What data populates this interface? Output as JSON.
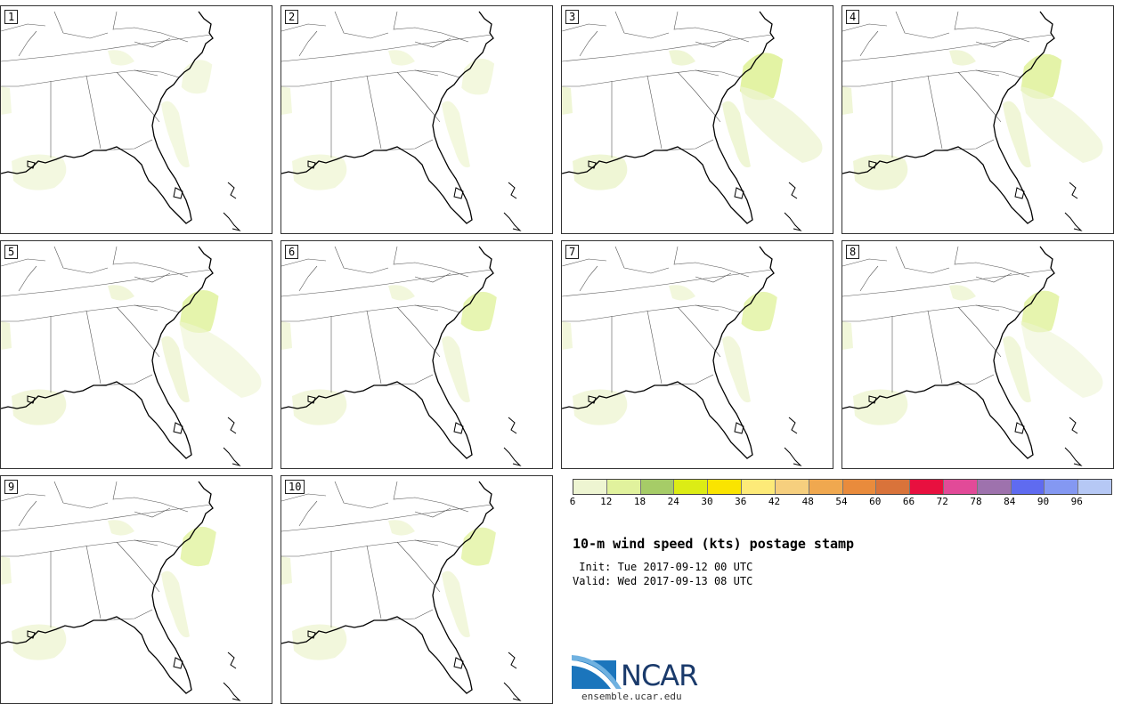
{
  "panels": [
    {
      "label": "1",
      "intensity": 0.35
    },
    {
      "label": "2",
      "intensity": 0.45
    },
    {
      "label": "3",
      "intensity": 0.95
    },
    {
      "label": "4",
      "intensity": 0.85
    },
    {
      "label": "5",
      "intensity": 0.75
    },
    {
      "label": "6",
      "intensity": 0.6
    },
    {
      "label": "7",
      "intensity": 0.6
    },
    {
      "label": "8",
      "intensity": 0.7
    },
    {
      "label": "9",
      "intensity": 0.6
    },
    {
      "label": "10",
      "intensity": 0.55
    }
  ],
  "colorbar": {
    "colors": [
      "#eef5d2",
      "#e1f29d",
      "#a6cc67",
      "#dcec15",
      "#fae400",
      "#fdea78",
      "#f6cf7e",
      "#f0a84f",
      "#e98b3c",
      "#d9733a",
      "#e8103f",
      "#e24a98",
      "#9e72ad",
      "#5f6bf0",
      "#8498f2",
      "#b6c8f5"
    ],
    "ticks": [
      "6",
      "12",
      "18",
      "24",
      "30",
      "36",
      "42",
      "48",
      "54",
      "60",
      "66",
      "72",
      "78",
      "84",
      "90",
      "96"
    ]
  },
  "title": "10-m wind speed (kts) postage stamp",
  "init_line": " Init: Tue 2017-09-12 00 UTC",
  "valid_line": "Valid: Wed 2017-09-13 08 UTC",
  "logo": {
    "name": "NCAR",
    "url": "ensemble.ucar.edu"
  }
}
